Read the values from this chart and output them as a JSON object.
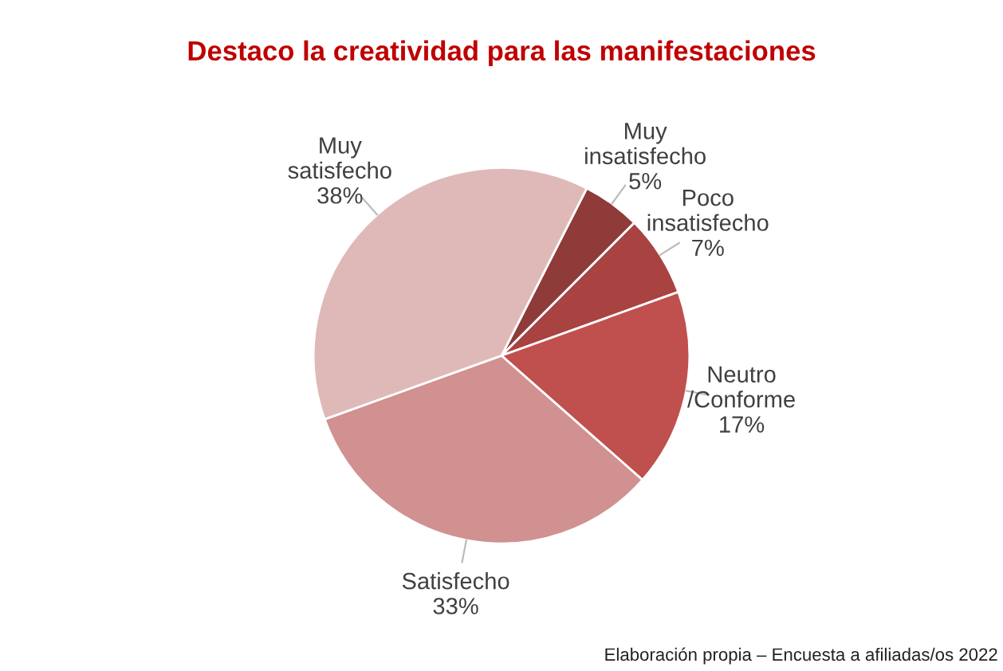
{
  "chart_data": {
    "type": "pie",
    "title": "Destaco la creatividad para las manifestaciones",
    "categories": [
      "Muy insatisfecho",
      "Poco insatisfecho",
      "Neutro /Conforme",
      "Satisfecho",
      "Muy satisfecho"
    ],
    "values": [
      5,
      7,
      17,
      33,
      38
    ],
    "value_labels": [
      "5%",
      "7%",
      "17%",
      "33%",
      "38%"
    ],
    "colors": [
      "#8e3b3a",
      "#a84341",
      "#c0504d",
      "#d09190",
      "#dfb9b8"
    ],
    "annotations": [
      "Elaboración propia – Encuesta a afiliadas/os 2022"
    ]
  }
}
